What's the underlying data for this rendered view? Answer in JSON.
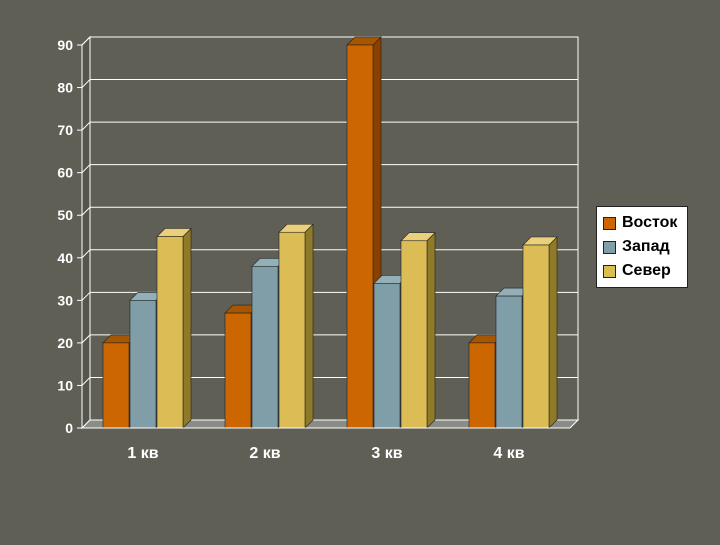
{
  "chart_data": {
    "type": "bar",
    "categories": [
      "1 кв",
      "2 кв",
      "3 кв",
      "4 кв"
    ],
    "series": [
      {
        "name": "Восток",
        "values": [
          20,
          27,
          90,
          20
        ],
        "color": "#cc6600",
        "side": "#8a4000",
        "top": "#a65500"
      },
      {
        "name": "Запад",
        "values": [
          30,
          38,
          34,
          31
        ],
        "color": "#7f9ea8",
        "side": "#52666d",
        "top": "#93b0b8"
      },
      {
        "name": "Север",
        "values": [
          45,
          46,
          44,
          43
        ],
        "color": "#dcbd55",
        "side": "#8f7a2a",
        "top": "#ead07a"
      }
    ],
    "yticks": [
      0,
      10,
      20,
      30,
      40,
      50,
      60,
      70,
      80,
      90
    ],
    "ylim": [
      0,
      90
    ],
    "grid": true,
    "legend": "right",
    "title": "",
    "xlabel": "",
    "ylabel": ""
  }
}
